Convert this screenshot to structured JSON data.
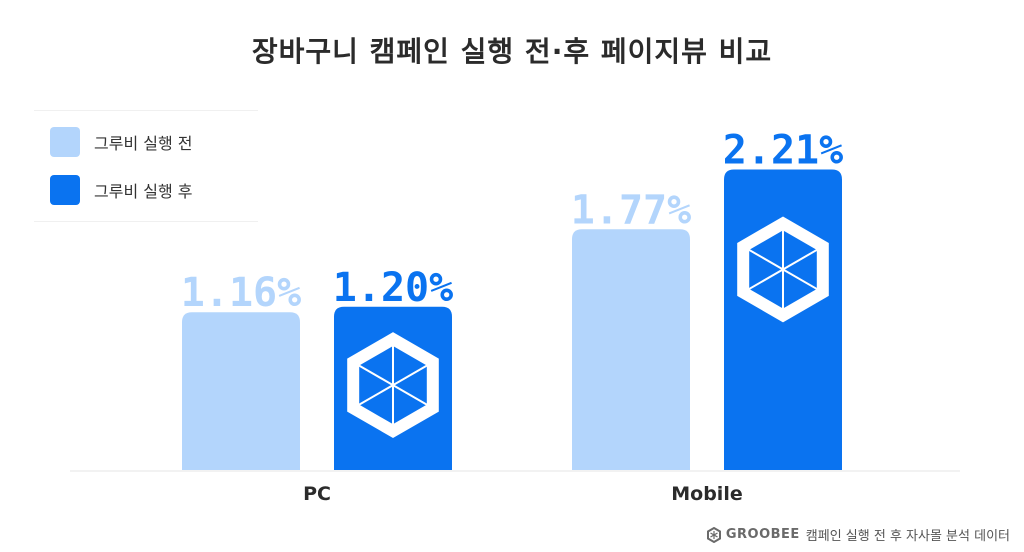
{
  "title": "장바구니 캠페인 실행 전·후 페이지뷰 비교",
  "footer": {
    "brand": "GROOBEE",
    "source": "캠페인 실행 전 후 자사몰 분석 데이터"
  },
  "colors": {
    "before": "#b3d5fc",
    "after": "#0a73f0",
    "axis": "#e6e6e6"
  },
  "chart_data": {
    "type": "bar",
    "categories": [
      "PC",
      "Mobile"
    ],
    "series": [
      {
        "name": "그루비 실행 전",
        "values": [
          1.16,
          1.77
        ],
        "labels": [
          "1.16%",
          "1.77%"
        ]
      },
      {
        "name": "그루비 실행 후",
        "values": [
          1.2,
          2.21
        ],
        "labels": [
          "1.20%",
          "2.21%"
        ]
      }
    ],
    "unit": "%",
    "legend_position": "top-left",
    "grid": false
  }
}
